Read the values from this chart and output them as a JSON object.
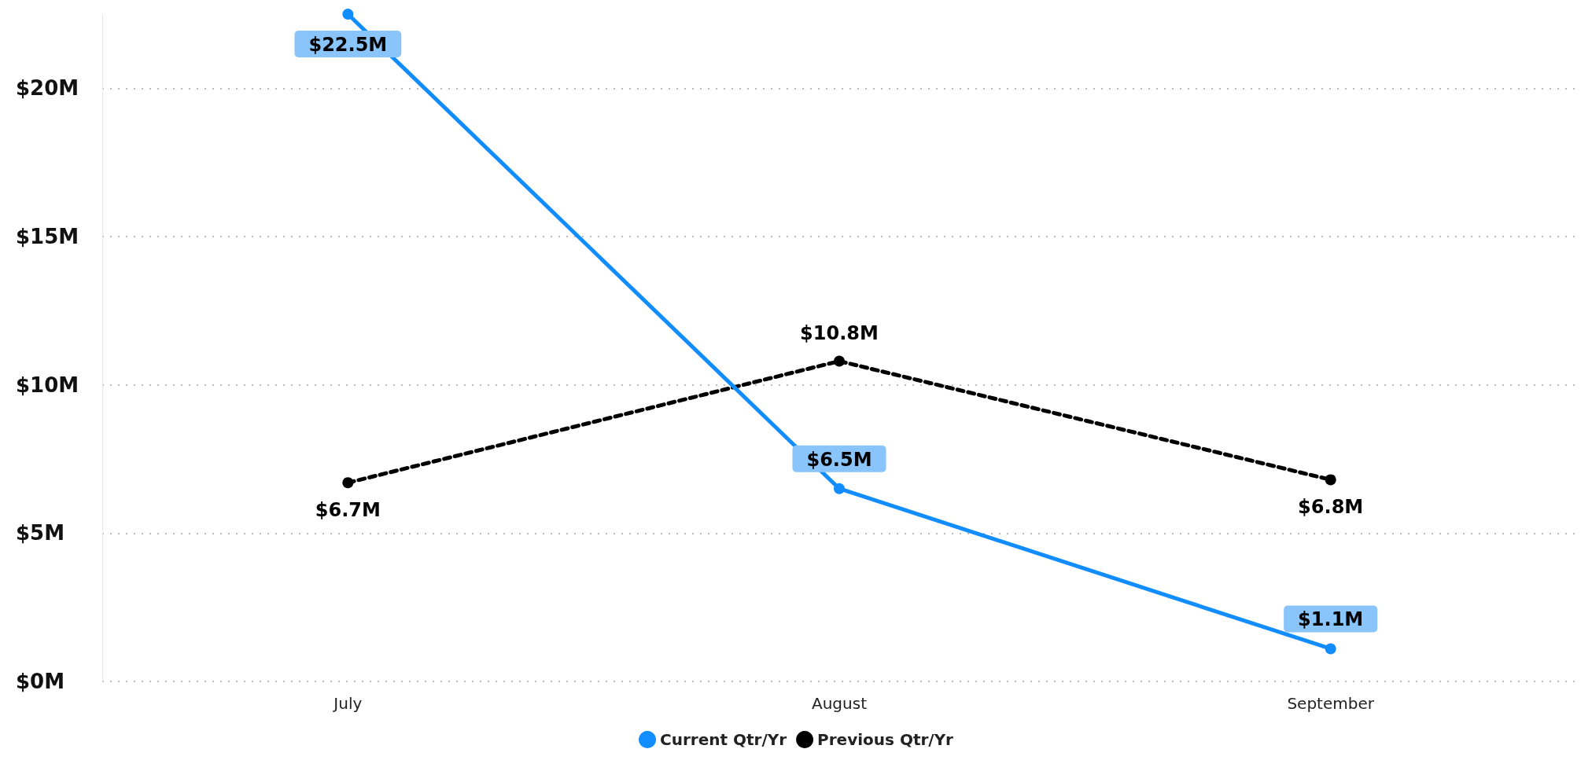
{
  "chart_data": {
    "type": "line",
    "categories": [
      "July",
      "August",
      "September"
    ],
    "series": [
      {
        "name": "Current Qtr/Yr",
        "color": "#118dff",
        "values": [
          22.5,
          6.5,
          1.1
        ],
        "value_labels": [
          "$22.5M",
          "$6.5M",
          "$1.1M"
        ],
        "line_style": "solid"
      },
      {
        "name": "Previous Qtr/Yr",
        "color": "#000000",
        "values": [
          6.7,
          10.8,
          6.8
        ],
        "value_labels": [
          "$6.7M",
          "$10.8M",
          "$6.8M"
        ],
        "line_style": "dashed"
      }
    ],
    "ylim": [
      0,
      22.5
    ],
    "yticks": [
      {
        "value": 0,
        "label": "$0M"
      },
      {
        "value": 5,
        "label": "$5M"
      },
      {
        "value": 10,
        "label": "$10M"
      },
      {
        "value": 15,
        "label": "$15M"
      },
      {
        "value": 20,
        "label": "$20M"
      }
    ],
    "grid": "y",
    "legend": "bottom",
    "marker": "circle"
  }
}
